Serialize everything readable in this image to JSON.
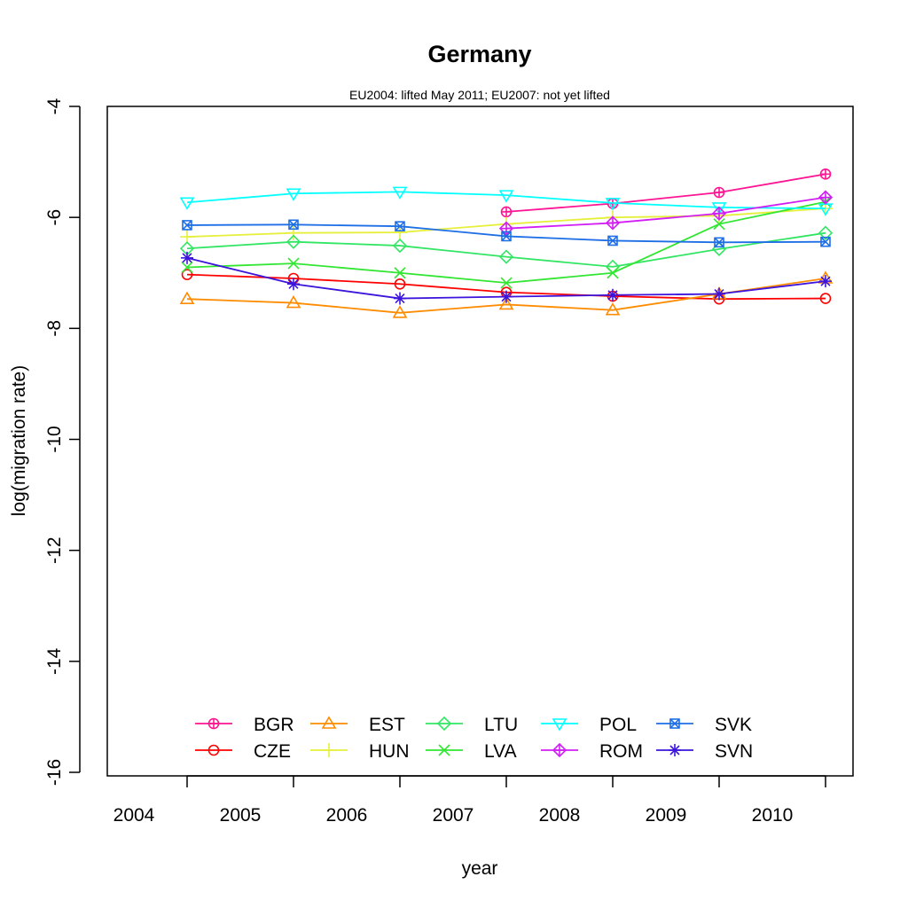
{
  "chart_data": {
    "type": "line",
    "title": "Germany",
    "subtitle": "EU2004: lifted May 2011; EU2007: not yet lifted",
    "xlabel": "year",
    "ylabel": "log(migration rate)",
    "x_tick_labels": [
      "2004",
      "2005",
      "2006",
      "2007",
      "2008",
      "2009",
      "2010"
    ],
    "y_ticks": [
      -16,
      -14,
      -12,
      -10,
      -8,
      -6,
      -4
    ],
    "y_tick_labels": [
      "-16",
      "-14",
      "-12",
      "-10",
      "-8",
      "-6",
      "-4"
    ],
    "ylim": [
      -16,
      -4
    ],
    "legend_position": "bottom",
    "series": [
      {
        "name": "BGR",
        "color": "#ff1493",
        "marker": "circle-plus",
        "values": [
          null,
          null,
          null,
          -5.9,
          -5.75,
          -5.55,
          -5.22
        ]
      },
      {
        "name": "CZE",
        "color": "#ff0000",
        "marker": "circle",
        "values": [
          -7.03,
          -7.1,
          -7.2,
          -7.35,
          -7.42,
          -7.47,
          -7.46
        ]
      },
      {
        "name": "EST",
        "color": "#ff8c00",
        "marker": "triangle",
        "values": [
          -7.47,
          -7.54,
          -7.72,
          -7.57,
          -7.67,
          -7.38,
          -7.1
        ]
      },
      {
        "name": "HUN",
        "color": "#e6f03c",
        "marker": "plus",
        "values": [
          -6.35,
          -6.28,
          -6.27,
          -6.12,
          -6.0,
          -5.97,
          -5.84
        ]
      },
      {
        "name": "LTU",
        "color": "#32e664",
        "marker": "diamond",
        "values": [
          -6.56,
          -6.44,
          -6.51,
          -6.71,
          -6.89,
          -6.57,
          -6.28
        ]
      },
      {
        "name": "LVA",
        "color": "#32e632",
        "marker": "cross",
        "values": [
          -6.9,
          -6.83,
          -7.0,
          -7.18,
          -7.0,
          -6.12,
          -5.72
        ]
      },
      {
        "name": "POL",
        "color": "#00ffff",
        "marker": "triangle-down",
        "values": [
          -5.73,
          -5.57,
          -5.54,
          -5.6,
          -5.74,
          -5.82,
          -5.84
        ]
      },
      {
        "name": "ROM",
        "color": "#d21ef5",
        "marker": "diamond-plus",
        "values": [
          null,
          null,
          null,
          -6.2,
          -6.1,
          -5.93,
          -5.64
        ]
      },
      {
        "name": "SVK",
        "color": "#1e6ee6",
        "marker": "square-x",
        "values": [
          -6.14,
          -6.13,
          -6.16,
          -6.34,
          -6.42,
          -6.45,
          -6.44
        ]
      },
      {
        "name": "SVN",
        "color": "#3c14dc",
        "marker": "star",
        "values": [
          -6.73,
          -7.2,
          -7.46,
          -7.43,
          -7.4,
          -7.38,
          -7.15
        ]
      }
    ]
  }
}
